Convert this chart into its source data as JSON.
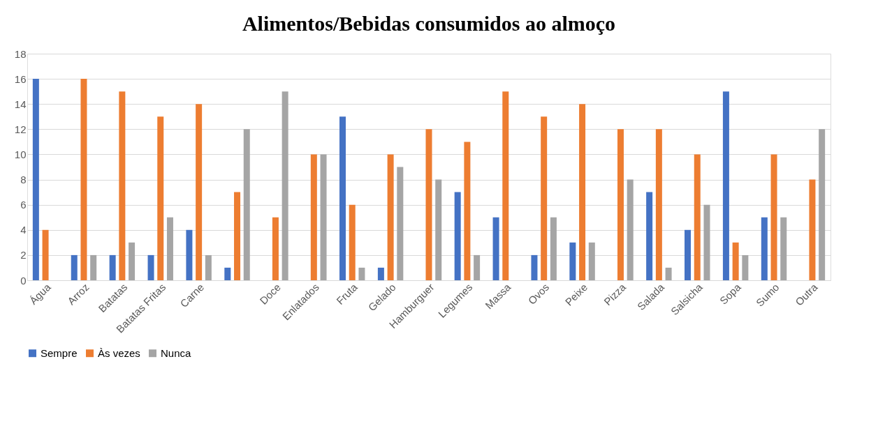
{
  "chart_data": {
    "type": "bar",
    "title": "Alimentos/Bebidas consumidos ao almoço",
    "categories": [
      "Água",
      "Arroz",
      "Batatas",
      "Batatas Fritas",
      "Carne",
      null,
      "Doce",
      "Enlatados",
      "Fruta",
      "Gelado",
      "Hamburguer",
      "Legumes",
      "Massa",
      "Ovos",
      "Peixe",
      "Pizza",
      "Salada",
      "Salsicha",
      "Sopa",
      "Sumo",
      "Outra"
    ],
    "series": [
      {
        "name": "Sempre",
        "color": "#4472c4",
        "values": [
          16,
          2,
          2,
          2,
          4,
          1,
          0,
          0,
          13,
          1,
          0,
          7,
          5,
          2,
          3,
          0,
          7,
          4,
          15,
          5,
          0
        ]
      },
      {
        "name": "Às vezes",
        "color": "#ed7d31",
        "values": [
          4,
          16,
          15,
          13,
          14,
          7,
          5,
          10,
          6,
          10,
          12,
          11,
          15,
          13,
          14,
          12,
          12,
          10,
          3,
          10,
          8
        ]
      },
      {
        "name": "Nunca",
        "color": "#a5a5a5",
        "values": [
          0,
          2,
          3,
          5,
          2,
          12,
          15,
          10,
          1,
          9,
          8,
          2,
          0,
          5,
          3,
          8,
          1,
          6,
          2,
          5,
          12
        ]
      }
    ],
    "ylim": [
      0,
      18
    ],
    "yticks": [
      0,
      2,
      4,
      6,
      8,
      10,
      12,
      14,
      16,
      18
    ],
    "grid": "y",
    "legend": "bottom"
  }
}
